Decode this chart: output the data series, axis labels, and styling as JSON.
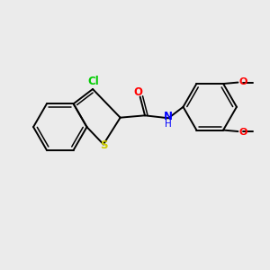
{
  "background_color": "#ebebeb",
  "bond_color": "#000000",
  "atom_colors": {
    "Cl": "#00cc00",
    "S": "#cccc00",
    "O": "#ff0000",
    "N": "#0000ff"
  },
  "figsize": [
    3.0,
    3.0
  ],
  "dpi": 100,
  "lw": 1.4,
  "lw_inner": 1.1
}
